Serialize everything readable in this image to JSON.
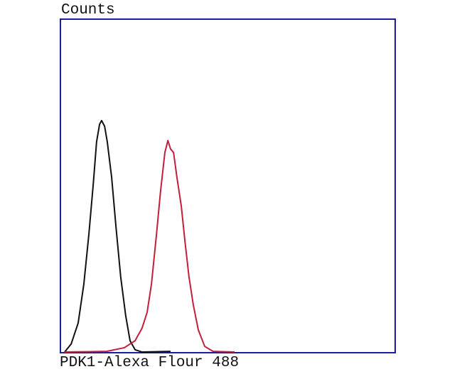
{
  "chart_data": {
    "type": "line",
    "title": "",
    "xlabel": "PDK1-Alexa Flour 488",
    "ylabel": "Counts",
    "xlim": [
      0,
      1000
    ],
    "ylim": [
      0,
      100
    ],
    "grid": false,
    "colors": {
      "frame": "#1c1c9c",
      "series1": "#111111",
      "series2": "#c41e3a"
    },
    "series": [
      {
        "color": "#111111",
        "x": [
          11,
          32,
          53,
          70,
          85,
          98,
          108,
          117,
          123,
          132,
          140,
          153,
          166,
          180,
          195,
          208,
          223,
          244,
          329
        ],
        "y": [
          0,
          2.6,
          8.9,
          20.6,
          35.5,
          50.4,
          63.2,
          68.5,
          69.6,
          67.9,
          63.2,
          52.6,
          37.7,
          22.8,
          11.1,
          3.6,
          0.9,
          0.2,
          0.4
        ]
      },
      {
        "color": "#c41e3a",
        "x": [
          11,
          138,
          191,
          223,
          244,
          259,
          272,
          287,
          299,
          312,
          321,
          329,
          338,
          348,
          361,
          372,
          384,
          397,
          412,
          431,
          456,
          520
        ],
        "y": [
          0.2,
          0.4,
          1.5,
          3.6,
          7.4,
          12.1,
          20.6,
          35.5,
          48.3,
          60,
          63.6,
          61.1,
          60,
          52.6,
          44,
          33.4,
          22.8,
          14.3,
          6.8,
          1.9,
          0.4,
          0.2
        ]
      }
    ]
  }
}
